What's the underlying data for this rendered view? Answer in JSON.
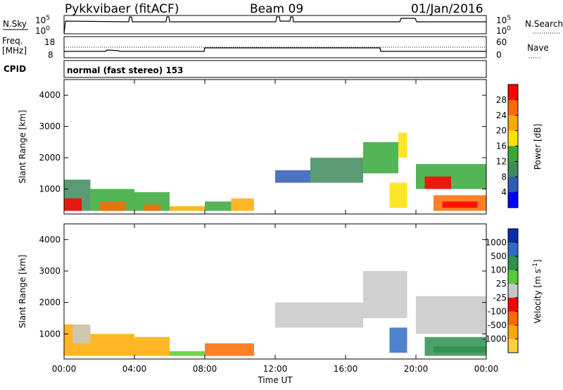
{
  "header": {
    "station": "Pykkvibaer (fitACF)",
    "beam": "Beam 09",
    "date": "01/Jan/2016"
  },
  "top_panels": {
    "nsky": {
      "label": "N.Sky",
      "tick_top": "10^5",
      "tick_bottom": "10^0",
      "right_tick_top": "10^5",
      "right_tick_bottom": "10^0"
    },
    "nsearch": {
      "label": "N.Search"
    },
    "freq": {
      "label_line1": "Freq.",
      "label_line2": "[MHz]",
      "tick_top": "18",
      "tick_bottom": "8",
      "right_tick_top": "60",
      "right_tick_bottom": "0"
    },
    "nave": {
      "label": "Nave"
    },
    "cpid": {
      "label": "CPID",
      "text": "normal (fast stereo) 153"
    }
  },
  "time_axis": {
    "label": "Time UT",
    "ticks": [
      "00:00",
      "04:00",
      "08:00",
      "12:00",
      "16:00",
      "20:00",
      "00:00"
    ]
  },
  "colors": {
    "power": [
      "#0000ff",
      "#2e5bb5",
      "#3e8a5a",
      "#36a838",
      "#ffe000",
      "#ffaa00",
      "#ff6a00",
      "#ff0000"
    ],
    "velocity_neg": [
      "#ff0000",
      "#ff6a00",
      "#ffaa00",
      "#ffd040"
    ],
    "velocity_pos": [
      "#0b2ea8",
      "#2e6cc4",
      "#2f8f4e",
      "#55cc33"
    ],
    "gs": "#c8c8c8"
  },
  "chart_data": [
    {
      "type": "heatmap",
      "name": "power",
      "ylabel": "Slant Range [km]",
      "xlabel": "",
      "xlim": [
        0,
        24
      ],
      "ylim": [
        200,
        4500
      ],
      "yticks": [
        "1000",
        "2000",
        "3000",
        "4000"
      ],
      "colorbar": {
        "label": "Power [dB]",
        "ticks": [
          "4",
          "8",
          "12",
          "16",
          "20",
          "24",
          "28"
        ],
        "range": [
          0,
          30
        ]
      },
      "regions": [
        {
          "t": [
            0,
            1.5
          ],
          "r": [
            300,
            1300
          ],
          "level": 2
        },
        {
          "t": [
            0,
            1.0
          ],
          "r": [
            300,
            700
          ],
          "level": 7
        },
        {
          "t": [
            1.5,
            4
          ],
          "r": [
            300,
            1000
          ],
          "level": 3
        },
        {
          "t": [
            2,
            3.5
          ],
          "r": [
            300,
            600
          ],
          "level": 6
        },
        {
          "t": [
            4,
            6
          ],
          "r": [
            300,
            900
          ],
          "level": 3
        },
        {
          "t": [
            4.5,
            5.5
          ],
          "r": [
            300,
            500
          ],
          "level": 6
        },
        {
          "t": [
            6,
            8
          ],
          "r": [
            300,
            450
          ],
          "level": 5
        },
        {
          "t": [
            8,
            9.5
          ],
          "r": [
            300,
            600
          ],
          "level": 3
        },
        {
          "t": [
            9.5,
            10.8
          ],
          "r": [
            300,
            700
          ],
          "level": 5
        },
        {
          "t": [
            12,
            14
          ],
          "r": [
            1200,
            1600
          ],
          "level": 1
        },
        {
          "t": [
            14,
            17
          ],
          "r": [
            1200,
            2000
          ],
          "level": 2
        },
        {
          "t": [
            17,
            19
          ],
          "r": [
            1500,
            2500
          ],
          "level": 3
        },
        {
          "t": [
            18.5,
            19.5
          ],
          "r": [
            400,
            1200
          ],
          "level": 4
        },
        {
          "t": [
            19,
            19.5
          ],
          "r": [
            2000,
            2800
          ],
          "level": 4
        },
        {
          "t": [
            20,
            24
          ],
          "r": [
            1000,
            1800
          ],
          "level": 3
        },
        {
          "t": [
            20.5,
            22
          ],
          "r": [
            1000,
            1400
          ],
          "level": 7
        },
        {
          "t": [
            21,
            24
          ],
          "r": [
            300,
            800
          ],
          "level": 6
        },
        {
          "t": [
            21.5,
            23.5
          ],
          "r": [
            400,
            600
          ],
          "level": 7
        }
      ]
    },
    {
      "type": "heatmap",
      "name": "velocity",
      "ylabel": "Slant Range [km]",
      "xlabel": "Time UT",
      "xlim": [
        0,
        24
      ],
      "ylim": [
        200,
        4500
      ],
      "yticks": [
        "1000",
        "2000",
        "3000",
        "4000"
      ],
      "colorbar": {
        "label": "Velocity [m s^-1]",
        "ticks": [
          "1000",
          "500",
          "100",
          "25",
          "-25",
          "-100",
          "-500",
          "-1000"
        ]
      },
      "regions": [
        {
          "t": [
            0,
            1.5
          ],
          "r": [
            300,
            1300
          ],
          "kind": "neg",
          "level": 2
        },
        {
          "t": [
            0.5,
            1.5
          ],
          "r": [
            700,
            1300
          ],
          "kind": "gs",
          "level": 0
        },
        {
          "t": [
            1.5,
            4
          ],
          "r": [
            300,
            1000
          ],
          "kind": "neg",
          "level": 2
        },
        {
          "t": [
            4,
            6
          ],
          "r": [
            300,
            900
          ],
          "kind": "neg",
          "level": 2
        },
        {
          "t": [
            6,
            8
          ],
          "r": [
            300,
            450
          ],
          "kind": "pos",
          "level": 3
        },
        {
          "t": [
            8,
            10.8
          ],
          "r": [
            300,
            700
          ],
          "kind": "neg",
          "level": 1
        },
        {
          "t": [
            12,
            17
          ],
          "r": [
            1200,
            2000
          ],
          "kind": "gs",
          "level": 0
        },
        {
          "t": [
            17,
            19.5
          ],
          "r": [
            1500,
            3000
          ],
          "kind": "gs",
          "level": 0
        },
        {
          "t": [
            18.5,
            19.5
          ],
          "r": [
            400,
            1200
          ],
          "kind": "pos",
          "level": 1
        },
        {
          "t": [
            20,
            24
          ],
          "r": [
            1000,
            2200
          ],
          "kind": "gs",
          "level": 0
        },
        {
          "t": [
            20.5,
            24
          ],
          "r": [
            300,
            900
          ],
          "kind": "pos",
          "level": 2
        },
        {
          "t": [
            21,
            24
          ],
          "r": [
            400,
            600
          ],
          "kind": "pos",
          "level": 2
        }
      ]
    }
  ]
}
